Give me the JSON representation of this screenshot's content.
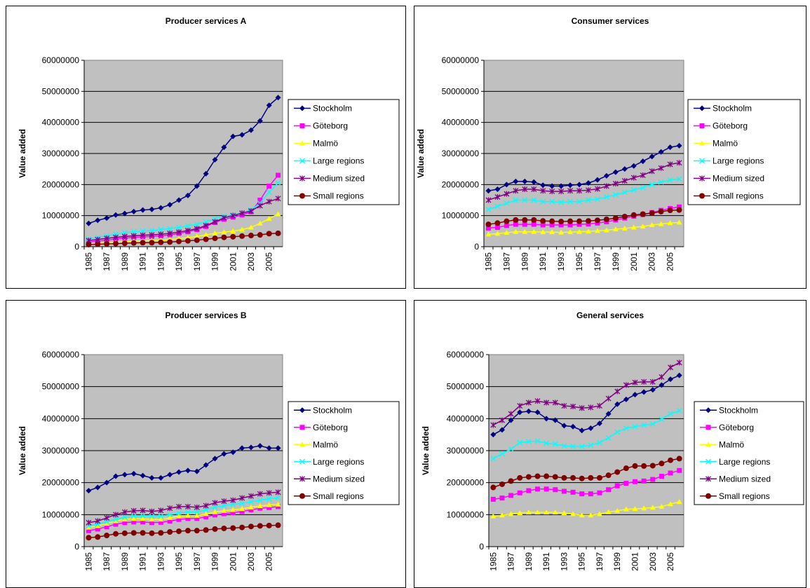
{
  "chart_data": [
    {
      "type": "line",
      "title": "Producer services A",
      "ylabel": "Value added",
      "categories": [
        "1985",
        null,
        "1987",
        null,
        "1989",
        null,
        "1991",
        null,
        "1993",
        null,
        "1995",
        null,
        "1997",
        null,
        "1999",
        null,
        "2001",
        null,
        "2003",
        null,
        "2005",
        null
      ],
      "ylim": [
        0,
        60000000
      ],
      "yticks": [
        0,
        10000000,
        20000000,
        30000000,
        40000000,
        50000000,
        60000000
      ],
      "grid": true,
      "series": [
        {
          "name": "Stockholm",
          "color": "#000080",
          "values": [
            7500000.0,
            8500000.0,
            9200000.0,
            10200000.0,
            10700000.0,
            11300000.0,
            11800000.0,
            12000000.0,
            12500000.0,
            13500000.0,
            15000000.0,
            16500000.0,
            19500000.0,
            23500000.0,
            28000000.0,
            32000000.0,
            35500000.0,
            36000000.0,
            37500000.0,
            40500000.0,
            45500000.0,
            48000000.0
          ]
        },
        {
          "name": "Göteborg",
          "color": "#FF00FF",
          "values": [
            1500000.0,
            1800000.0,
            2100000.0,
            2500000.0,
            2800000.0,
            3000000.0,
            3200000.0,
            3300000.0,
            3500000.0,
            3800000.0,
            4300000.0,
            4800000.0,
            5500000.0,
            6500000.0,
            7800000.0,
            8800000.0,
            9500000.0,
            10200000.0,
            11200000.0,
            15000000.0,
            19500000.0,
            23000000.0
          ]
        },
        {
          "name": "Malmö",
          "color": "#FFFF00",
          "values": [
            800000.0,
            1000000.0,
            1200000.0,
            1400000.0,
            1600000.0,
            1800000.0,
            1900000.0,
            2000000.0,
            2100000.0,
            2300000.0,
            2600000.0,
            2900000.0,
            3300000.0,
            3800000.0,
            4300000.0,
            4700000.0,
            5000000.0,
            5500000.0,
            6200000.0,
            7500000.0,
            9000000.0,
            10500000.0
          ]
        },
        {
          "name": "Large regions",
          "color": "#00FFFF",
          "values": [
            2500000.0,
            3000000.0,
            3500000.0,
            4000000.0,
            4500000.0,
            4800000.0,
            5000000.0,
            5200000.0,
            5500000.0,
            5800000.0,
            6200000.0,
            6700000.0,
            7200000.0,
            8000000.0,
            9000000.0,
            9800000.0,
            10300000.0,
            10800000.0,
            11800000.0,
            14000000.0,
            17500000.0,
            20500000.0
          ]
        },
        {
          "name": "Medium sized",
          "color": "#800080",
          "values": [
            2000000.0,
            2300000.0,
            2700000.0,
            3000000.0,
            3300000.0,
            3500000.0,
            3700000.0,
            3800000.0,
            4000000.0,
            4300000.0,
            4700000.0,
            5200000.0,
            5800000.0,
            6800000.0,
            8000000.0,
            9300000.0,
            10000000.0,
            10800000.0,
            11500000.0,
            13200000.0,
            14500000.0,
            15500000.0
          ]
        },
        {
          "name": "Small regions",
          "color": "#800000",
          "values": [
            700000.0,
            800000.0,
            900000.0,
            1000000.0,
            1100000.0,
            1200000.0,
            1300000.0,
            1300000.0,
            1400000.0,
            1500000.0,
            1700000.0,
            1900000.0,
            2100000.0,
            2400000.0,
            2700000.0,
            3000000.0,
            3200000.0,
            3400000.0,
            3600000.0,
            3800000.0,
            4200000.0,
            4300000.0
          ]
        }
      ]
    },
    {
      "type": "line",
      "title": "Consumer services",
      "ylabel": "Value added",
      "categories": [
        "1985",
        null,
        "1987",
        null,
        "1989",
        null,
        "1991",
        null,
        "1993",
        null,
        "1995",
        null,
        "1997",
        null,
        "1999",
        null,
        "2001",
        null,
        "2003",
        null,
        "2005",
        null
      ],
      "ylim": [
        0,
        60000000
      ],
      "yticks": [
        0,
        10000000,
        20000000,
        30000000,
        40000000,
        50000000,
        60000000
      ],
      "grid": true,
      "series": [
        {
          "name": "Stockholm",
          "color": "#000080",
          "values": [
            18000000.0,
            18500000.0,
            20000000.0,
            21000000.0,
            21000000.0,
            20800000.0,
            19800000.0,
            19500000.0,
            19500000.0,
            19800000.0,
            20000000.0,
            20500000.0,
            21500000.0,
            22800000.0,
            24000000.0,
            25000000.0,
            26000000.0,
            27500000.0,
            29000000.0,
            30500000.0,
            32000000.0,
            32500000.0
          ]
        },
        {
          "name": "Göteborg",
          "color": "#FF00FF",
          "values": [
            6000000.0,
            6200000.0,
            6800000.0,
            7200000.0,
            7200000.0,
            7200000.0,
            7000000.0,
            7000000.0,
            7000000.0,
            7000000.0,
            7200000.0,
            7300000.0,
            7600000.0,
            8000000.0,
            8600000.0,
            9200000.0,
            9800000.0,
            10300000.0,
            11000000.0,
            11700000.0,
            12300000.0,
            12800000.0
          ]
        },
        {
          "name": "Malmö",
          "color": "#FFFF00",
          "values": [
            4000000.0,
            4200000.0,
            4500000.0,
            4800000.0,
            4800000.0,
            4800000.0,
            4700000.0,
            4700000.0,
            4600000.0,
            4700000.0,
            4800000.0,
            4900000.0,
            5100000.0,
            5300000.0,
            5600000.0,
            5900000.0,
            6200000.0,
            6500000.0,
            7000000.0,
            7300000.0,
            7600000.0,
            7800000.0
          ]
        },
        {
          "name": "Large regions",
          "color": "#00FFFF",
          "values": [
            12000000.0,
            13000000.0,
            14000000.0,
            15000000.0,
            15000000.0,
            15000000.0,
            14500000.0,
            14500000.0,
            14300000.0,
            14500000.0,
            14500000.0,
            15000000.0,
            15300000.0,
            16000000.0,
            16700000.0,
            17500000.0,
            18300000.0,
            19000000.0,
            20000000.0,
            20800000.0,
            21500000.0,
            21800000.0
          ]
        },
        {
          "name": "Medium sized",
          "color": "#800080",
          "values": [
            15000000.0,
            16000000.0,
            17000000.0,
            18000000.0,
            18500000.0,
            18500000.0,
            18000000.0,
            17800000.0,
            17800000.0,
            18000000.0,
            18000000.0,
            18200000.0,
            18600000.0,
            19500000.0,
            20300000.0,
            21200000.0,
            22200000.0,
            23000000.0,
            24300000.0,
            25300000.0,
            26500000.0,
            27000000.0
          ]
        },
        {
          "name": "Small regions",
          "color": "#800000",
          "values": [
            7200000.0,
            7600000.0,
            8200000.0,
            8600000.0,
            8600000.0,
            8600000.0,
            8300000.0,
            8200000.0,
            8100000.0,
            8200000.0,
            8200000.0,
            8300000.0,
            8500000.0,
            8800000.0,
            9200000.0,
            9700000.0,
            10200000.0,
            10500000.0,
            10800000.0,
            11300000.0,
            11700000.0,
            11800000.0
          ]
        }
      ]
    },
    {
      "type": "line",
      "title": "Producer services B",
      "ylabel": "Value added",
      "categories": [
        "1985",
        null,
        "1987",
        null,
        "1989",
        null,
        "1991",
        null,
        "1993",
        null,
        "1995",
        null,
        "1997",
        null,
        "1999",
        null,
        "2001",
        null,
        "2003",
        null,
        "2005",
        null
      ],
      "ylim": [
        0,
        60000000
      ],
      "yticks": [
        0,
        10000000,
        20000000,
        30000000,
        40000000,
        50000000,
        60000000
      ],
      "grid": true,
      "series": [
        {
          "name": "Stockholm",
          "color": "#000080",
          "values": [
            17500000.0,
            18500000.0,
            20000000.0,
            22000000.0,
            22500000.0,
            22800000.0,
            22200000.0,
            21500000.0,
            21500000.0,
            22500000.0,
            23300000.0,
            23800000.0,
            23500000.0,
            25500000.0,
            27500000.0,
            29000000.0,
            29500000.0,
            30800000.0,
            31000000.0,
            31500000.0,
            30800000.0,
            30800000.0
          ]
        },
        {
          "name": "Göteborg",
          "color": "#FF00FF",
          "values": [
            5000000.0,
            5500000.0,
            6200000.0,
            7000000.0,
            7500000.0,
            7700000.0,
            7700000.0,
            7500000.0,
            7600000.0,
            8000000.0,
            8500000.0,
            8800000.0,
            8800000.0,
            9300000.0,
            9900000.0,
            10300000.0,
            10600000.0,
            11000000.0,
            11500000.0,
            12000000.0,
            12200000.0,
            12500000.0
          ]
        },
        {
          "name": "Malmö",
          "color": "#FFFF00",
          "values": [
            6000000.0,
            6500000.0,
            7200000.0,
            8000000.0,
            8500000.0,
            8700000.0,
            8700000.0,
            8500000.0,
            8500000.0,
            9000000.0,
            9500000.0,
            9700000.0,
            9700000.0,
            10200000.0,
            10800000.0,
            11200000.0,
            11500000.0,
            11800000.0,
            12300000.0,
            12700000.0,
            13000000.0,
            13200000.0
          ]
        },
        {
          "name": "Large regions",
          "color": "#00FFFF",
          "values": [
            6500000.0,
            7000000.0,
            7800000.0,
            8500000.0,
            9200000.0,
            9500000.0,
            9600000.0,
            9400000.0,
            9500000.0,
            10000000.0,
            10500000.0,
            10800000.0,
            10800000.0,
            11500000.0,
            12300000.0,
            12800000.0,
            13200000.0,
            13500000.0,
            14000000.0,
            14500000.0,
            15000000.0,
            15300000.0
          ]
        },
        {
          "name": "Medium sized",
          "color": "#800080",
          "values": [
            7500000.0,
            8000000.0,
            9000000.0,
            10000000.0,
            10800000.0,
            11200000.0,
            11300000.0,
            11000000.0,
            11300000.0,
            12000000.0,
            12500000.0,
            12500000.0,
            12300000.0,
            12800000.0,
            13700000.0,
            14200000.0,
            14500000.0,
            15200000.0,
            15800000.0,
            16500000.0,
            16800000.0,
            17000000.0
          ]
        },
        {
          "name": "Small regions",
          "color": "#800000",
          "values": [
            2800000.0,
            3000000.0,
            3500000.0,
            4000000.0,
            4200000.0,
            4300000.0,
            4300000.0,
            4200000.0,
            4300000.0,
            4600000.0,
            4800000.0,
            5000000.0,
            5000000.0,
            5200000.0,
            5500000.0,
            5700000.0,
            5800000.0,
            6000000.0,
            6300000.0,
            6500000.0,
            6600000.0,
            6700000.0
          ]
        }
      ]
    },
    {
      "type": "line",
      "title": "General services",
      "ylabel": "Value added",
      "categories": [
        "1985",
        null,
        "1987",
        null,
        "1989",
        null,
        "1991",
        null,
        "1993",
        null,
        "1995",
        null,
        "1997",
        null,
        "1999",
        null,
        "2001",
        null,
        "2003",
        null,
        "2005",
        null
      ],
      "ylim": [
        0,
        60000000
      ],
      "yticks": [
        0,
        10000000,
        20000000,
        30000000,
        40000000,
        50000000,
        60000000
      ],
      "grid": true,
      "series": [
        {
          "name": "Stockholm",
          "color": "#000080",
          "values": [
            35000000.0,
            36500000.0,
            39500000.0,
            42000000.0,
            42300000.0,
            42000000.0,
            40000000.0,
            39500000.0,
            37800000.0,
            37500000.0,
            36300000.0,
            37000000.0,
            38500000.0,
            41500000.0,
            44500000.0,
            46000000.0,
            47500000.0,
            48300000.0,
            49000000.0,
            50500000.0,
            52300000.0,
            53500000.0
          ]
        },
        {
          "name": "Göteborg",
          "color": "#FF00FF",
          "values": [
            14800000.0,
            15200000.0,
            16000000.0,
            16800000.0,
            17500000.0,
            18000000.0,
            18000000.0,
            17800000.0,
            17300000.0,
            17000000.0,
            16500000.0,
            16500000.0,
            16800000.0,
            17800000.0,
            19000000.0,
            19800000.0,
            20300000.0,
            20500000.0,
            21000000.0,
            22000000.0,
            23000000.0,
            23800000.0
          ]
        },
        {
          "name": "Malmö",
          "color": "#FFFF00",
          "values": [
            9500000.0,
            9800000.0,
            10200000.0,
            10500000.0,
            10700000.0,
            10700000.0,
            10700000.0,
            10700000.0,
            10500000.0,
            10200000.0,
            9800000.0,
            9800000.0,
            10200000.0,
            10800000.0,
            11200000.0,
            11700000.0,
            11800000.0,
            12000000.0,
            12200000.0,
            12500000.0,
            13300000.0,
            14000000.0
          ]
        },
        {
          "name": "Large regions",
          "color": "#00FFFF",
          "values": [
            27500000.0,
            29000000.0,
            30500000.0,
            32500000.0,
            32800000.0,
            33000000.0,
            32300000.0,
            32000000.0,
            31500000.0,
            31300000.0,
            31300000.0,
            31700000.0,
            32500000.0,
            34000000.0,
            35800000.0,
            37000000.0,
            37500000.0,
            38000000.0,
            38300000.0,
            39800000.0,
            41500000.0,
            42500000.0
          ]
        },
        {
          "name": "Medium sized",
          "color": "#800080",
          "values": [
            38000000.0,
            39500000.0,
            41500000.0,
            44000000.0,
            45000000.0,
            45500000.0,
            45000000.0,
            45000000.0,
            44000000.0,
            43800000.0,
            43300000.0,
            43500000.0,
            44000000.0,
            46300000.0,
            48500000.0,
            50500000.0,
            51300000.0,
            51500000.0,
            51500000.0,
            53000000.0,
            56000000.0,
            57500000.0
          ]
        },
        {
          "name": "Small regions",
          "color": "#800000",
          "values": [
            18500000.0,
            19500000.0,
            20500000.0,
            21500000.0,
            21800000.0,
            22000000.0,
            22000000.0,
            21800000.0,
            21500000.0,
            21500000.0,
            21300000.0,
            21500000.0,
            21500000.0,
            22300000.0,
            23300000.0,
            24500000.0,
            25200000.0,
            25200000.0,
            25300000.0,
            26000000.0,
            27000000.0,
            27500000.0
          ]
        }
      ]
    }
  ]
}
